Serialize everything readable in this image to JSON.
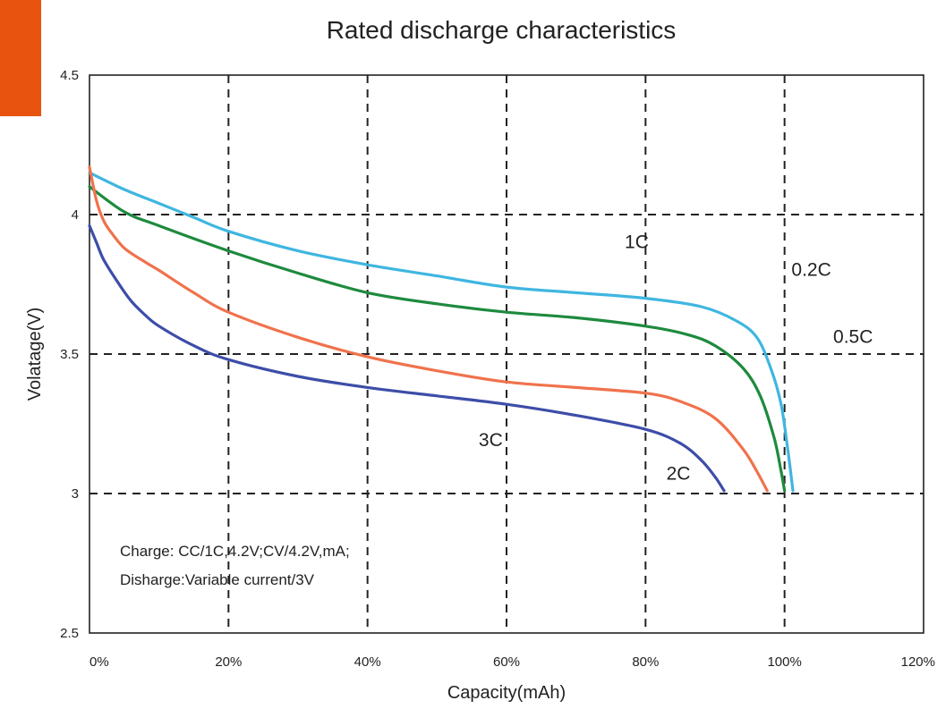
{
  "brand": {
    "accent_color": "#E8540F"
  },
  "chart_data": {
    "type": "line",
    "title": "Rated discharge characteristics",
    "xlabel": "Capacity(mAh)",
    "ylabel": "Volatage(V)",
    "xlim": [
      0,
      120
    ],
    "ylim": [
      2.5,
      4.5
    ],
    "grid": true,
    "x_ticks": [
      "0%",
      "20%",
      "40%",
      "60%",
      "80%",
      "100%",
      "120%"
    ],
    "y_ticks": [
      "2.5",
      "3",
      "3.5",
      "4",
      "4.5"
    ],
    "series": [
      {
        "name": "0.2C",
        "color": "#3FB6E0",
        "x": [
          0,
          5,
          10,
          15,
          20,
          30,
          40,
          50,
          60,
          70,
          80,
          88,
          93,
          96,
          98,
          99.5,
          100.5,
          101.2
        ],
        "y": [
          4.15,
          4.09,
          4.04,
          3.99,
          3.94,
          3.87,
          3.82,
          3.78,
          3.74,
          3.72,
          3.7,
          3.67,
          3.62,
          3.56,
          3.45,
          3.32,
          3.15,
          3.01
        ]
      },
      {
        "name": "0.5C",
        "color": "#1E8A3E",
        "x": [
          0,
          5,
          10,
          20,
          30,
          40,
          50,
          60,
          70,
          80,
          86,
          90,
          94,
          96.5,
          98.5,
          99.5,
          100
        ],
        "y": [
          4.1,
          4.01,
          3.96,
          3.87,
          3.79,
          3.72,
          3.68,
          3.65,
          3.63,
          3.6,
          3.57,
          3.53,
          3.45,
          3.35,
          3.2,
          3.08,
          3.01
        ]
      },
      {
        "name": "2C",
        "color": "#F0724C",
        "x": [
          0,
          1,
          2,
          3,
          5,
          8,
          10,
          15,
          20,
          30,
          40,
          50,
          60,
          70,
          80,
          85,
          90,
          94,
          96,
          97.5
        ],
        "y": [
          4.17,
          4.05,
          3.98,
          3.94,
          3.88,
          3.83,
          3.8,
          3.72,
          3.65,
          3.56,
          3.49,
          3.44,
          3.4,
          3.38,
          3.36,
          3.33,
          3.27,
          3.16,
          3.08,
          3.01
        ]
      },
      {
        "name": "3C",
        "color": "#3D4DA8",
        "x": [
          0,
          1,
          2,
          4,
          6,
          8,
          10,
          15,
          20,
          30,
          40,
          50,
          60,
          70,
          80,
          85,
          88,
          90,
          91.3
        ],
        "y": [
          3.96,
          3.9,
          3.84,
          3.76,
          3.69,
          3.64,
          3.6,
          3.53,
          3.48,
          3.42,
          3.38,
          3.35,
          3.32,
          3.28,
          3.23,
          3.18,
          3.12,
          3.06,
          3.01
        ]
      }
    ],
    "annotations": [
      {
        "text": "1C",
        "x": 77,
        "y": 3.88
      },
      {
        "text": "0.2C",
        "x": 101,
        "y": 3.78
      },
      {
        "text": "0.5C",
        "x": 107,
        "y": 3.54
      },
      {
        "text": "3C",
        "x": 56,
        "y": 3.17
      },
      {
        "text": "2C",
        "x": 83,
        "y": 3.05
      }
    ],
    "notes": [
      "Charge: CC/1C,4.2V;CV/4.2V,mA;",
      "Disharge:Variable current/3V"
    ]
  }
}
